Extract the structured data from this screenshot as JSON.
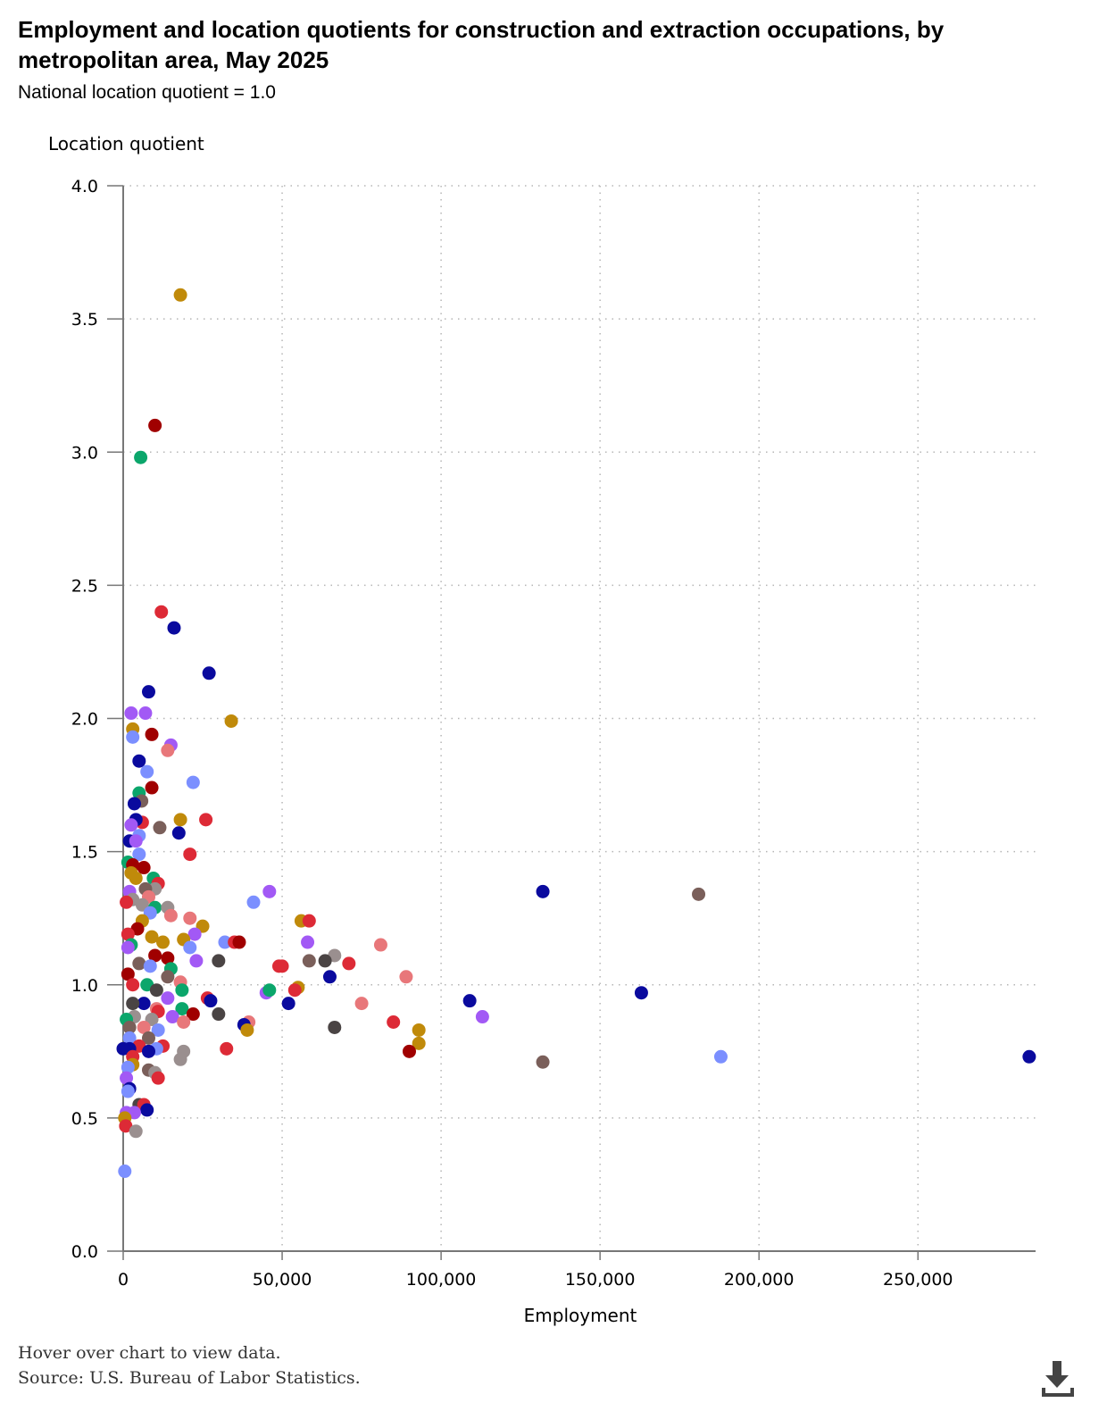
{
  "title": "Employment and location quotients for construction and extraction occupations, by metropolitan area, May 2025",
  "subtitle": "National location quotient = 1.0",
  "footer": {
    "hover_note": "Hover over chart to view data.",
    "source": "Source: U.S. Bureau of Labor Statistics."
  },
  "download_icon": "download-icon",
  "chart_data": {
    "type": "scatter",
    "ylabel": "Location quotient",
    "xlabel": "Employment",
    "xlim": [
      0,
      287000
    ],
    "ylim": [
      0,
      4
    ],
    "x_ticks": [
      0,
      50000,
      100000,
      150000,
      200000,
      250000
    ],
    "x_tick_labels": [
      "0",
      "50,000",
      "100,000",
      "150,000",
      "200,000",
      "250,000"
    ],
    "y_ticks": [
      0,
      0.5,
      1,
      1.5,
      2,
      2.5,
      3,
      3.5,
      4
    ],
    "y_tick_labels": [
      "0.0",
      "0.5",
      "1.0",
      "1.5",
      "2.0",
      "2.5",
      "3.0",
      "3.5",
      "4.0"
    ],
    "grid": "dotted",
    "legend": "none",
    "palette": {
      "navy": "#0a0a9e",
      "blue": "#7b8fff",
      "purple": "#a259f5",
      "green": "#0ba66b",
      "gold": "#c08a0a",
      "darkred": "#a00000",
      "red": "#dd2a36",
      "salmon": "#e8777a",
      "brown": "#7a5f5a",
      "gray": "#9a8f8f",
      "dark": "#4a4444"
    },
    "points": [
      [
        18000,
        3.59,
        "gold"
      ],
      [
        10000,
        3.1,
        "darkred"
      ],
      [
        5500,
        2.98,
        "green"
      ],
      [
        12000,
        2.4,
        "red"
      ],
      [
        16000,
        2.34,
        "navy"
      ],
      [
        27000,
        2.17,
        "navy"
      ],
      [
        8000,
        2.1,
        "navy"
      ],
      [
        34000,
        1.99,
        "gold"
      ],
      [
        2500,
        2.02,
        "purple"
      ],
      [
        7000,
        2.02,
        "purple"
      ],
      [
        3000,
        1.96,
        "gold"
      ],
      [
        9000,
        1.94,
        "darkred"
      ],
      [
        3000,
        1.93,
        "blue"
      ],
      [
        15000,
        1.9,
        "purple"
      ],
      [
        14000,
        1.88,
        "salmon"
      ],
      [
        5000,
        1.84,
        "navy"
      ],
      [
        7500,
        1.8,
        "blue"
      ],
      [
        22000,
        1.76,
        "blue"
      ],
      [
        9000,
        1.74,
        "darkred"
      ],
      [
        5000,
        1.72,
        "green"
      ],
      [
        5800,
        1.69,
        "brown"
      ],
      [
        3500,
        1.68,
        "navy"
      ],
      [
        26000,
        1.62,
        "red"
      ],
      [
        18000,
        1.62,
        "gold"
      ],
      [
        6000,
        1.61,
        "red"
      ],
      [
        4000,
        1.62,
        "navy"
      ],
      [
        2500,
        1.6,
        "purple"
      ],
      [
        11500,
        1.59,
        "brown"
      ],
      [
        17500,
        1.57,
        "navy"
      ],
      [
        5000,
        1.56,
        "blue"
      ],
      [
        2000,
        1.54,
        "navy"
      ],
      [
        4000,
        1.54,
        "purple"
      ],
      [
        21000,
        1.49,
        "red"
      ],
      [
        5000,
        1.49,
        "blue"
      ],
      [
        1500,
        1.46,
        "green"
      ],
      [
        3000,
        1.45,
        "darkred"
      ],
      [
        6500,
        1.44,
        "darkred"
      ],
      [
        2500,
        1.42,
        "gold"
      ],
      [
        4000,
        1.4,
        "gold"
      ],
      [
        9500,
        1.4,
        "green"
      ],
      [
        11000,
        1.38,
        "red"
      ],
      [
        132000,
        1.35,
        "navy"
      ],
      [
        181000,
        1.34,
        "brown"
      ],
      [
        46000,
        1.35,
        "purple"
      ],
      [
        10000,
        1.36,
        "gray"
      ],
      [
        7000,
        1.36,
        "brown"
      ],
      [
        2000,
        1.35,
        "purple"
      ],
      [
        8000,
        1.33,
        "salmon"
      ],
      [
        3000,
        1.32,
        "gray"
      ],
      [
        41000,
        1.31,
        "blue"
      ],
      [
        1000,
        1.31,
        "red"
      ],
      [
        6000,
        1.3,
        "gray"
      ],
      [
        10000,
        1.29,
        "green"
      ],
      [
        14000,
        1.29,
        "gray"
      ],
      [
        8500,
        1.27,
        "blue"
      ],
      [
        15000,
        1.26,
        "salmon"
      ],
      [
        21000,
        1.25,
        "salmon"
      ],
      [
        56000,
        1.24,
        "gold"
      ],
      [
        58500,
        1.24,
        "red"
      ],
      [
        6000,
        1.24,
        "gold"
      ],
      [
        25000,
        1.22,
        "gold"
      ],
      [
        4500,
        1.21,
        "darkred"
      ],
      [
        22500,
        1.19,
        "purple"
      ],
      [
        1500,
        1.19,
        "red"
      ],
      [
        9000,
        1.18,
        "gold"
      ],
      [
        19000,
        1.17,
        "gold"
      ],
      [
        32000,
        1.16,
        "blue"
      ],
      [
        35000,
        1.16,
        "red"
      ],
      [
        36500,
        1.16,
        "darkred"
      ],
      [
        58000,
        1.16,
        "purple"
      ],
      [
        12500,
        1.16,
        "gold"
      ],
      [
        2500,
        1.15,
        "green"
      ],
      [
        81000,
        1.15,
        "salmon"
      ],
      [
        21000,
        1.14,
        "blue"
      ],
      [
        1500,
        1.14,
        "purple"
      ],
      [
        66500,
        1.11,
        "gray"
      ],
      [
        10000,
        1.11,
        "darkred"
      ],
      [
        14000,
        1.1,
        "darkred"
      ],
      [
        23000,
        1.09,
        "purple"
      ],
      [
        30000,
        1.09,
        "dark"
      ],
      [
        58500,
        1.09,
        "brown"
      ],
      [
        63500,
        1.09,
        "dark"
      ],
      [
        71000,
        1.08,
        "red"
      ],
      [
        5000,
        1.08,
        "brown"
      ],
      [
        49000,
        1.07,
        "red"
      ],
      [
        50000,
        1.07,
        "red"
      ],
      [
        8500,
        1.07,
        "blue"
      ],
      [
        15000,
        1.06,
        "green"
      ],
      [
        1500,
        1.04,
        "darkred"
      ],
      [
        65000,
        1.03,
        "navy"
      ],
      [
        89000,
        1.03,
        "salmon"
      ],
      [
        14000,
        1.03,
        "brown"
      ],
      [
        18000,
        1.01,
        "salmon"
      ],
      [
        7500,
        1.0,
        "green"
      ],
      [
        3000,
        1.0,
        "red"
      ],
      [
        55000,
        0.99,
        "gold"
      ],
      [
        10500,
        0.98,
        "dark"
      ],
      [
        18500,
        0.98,
        "green"
      ],
      [
        45000,
        0.97,
        "purple"
      ],
      [
        46000,
        0.98,
        "green"
      ],
      [
        54000,
        0.98,
        "red"
      ],
      [
        163000,
        0.97,
        "navy"
      ],
      [
        14000,
        0.95,
        "purple"
      ],
      [
        26500,
        0.95,
        "red"
      ],
      [
        27500,
        0.94,
        "navy"
      ],
      [
        109000,
        0.94,
        "navy"
      ],
      [
        75000,
        0.93,
        "salmon"
      ],
      [
        52000,
        0.93,
        "navy"
      ],
      [
        6500,
        0.93,
        "navy"
      ],
      [
        3000,
        0.93,
        "dark"
      ],
      [
        10500,
        0.91,
        "salmon"
      ],
      [
        18500,
        0.91,
        "green"
      ],
      [
        11000,
        0.9,
        "red"
      ],
      [
        22000,
        0.89,
        "darkred"
      ],
      [
        30000,
        0.89,
        "dark"
      ],
      [
        113000,
        0.88,
        "purple"
      ],
      [
        15500,
        0.88,
        "purple"
      ],
      [
        3500,
        0.88,
        "gray"
      ],
      [
        9000,
        0.87,
        "gray"
      ],
      [
        1000,
        0.87,
        "green"
      ],
      [
        39500,
        0.86,
        "salmon"
      ],
      [
        85000,
        0.86,
        "red"
      ],
      [
        19000,
        0.86,
        "salmon"
      ],
      [
        66500,
        0.84,
        "dark"
      ],
      [
        38000,
        0.85,
        "navy"
      ],
      [
        2000,
        0.84,
        "brown"
      ],
      [
        6500,
        0.84,
        "salmon"
      ],
      [
        93000,
        0.83,
        "gold"
      ],
      [
        39000,
        0.83,
        "gold"
      ],
      [
        11000,
        0.83,
        "blue"
      ],
      [
        8000,
        0.8,
        "brown"
      ],
      [
        2000,
        0.8,
        "blue"
      ],
      [
        93000,
        0.78,
        "gold"
      ],
      [
        12500,
        0.77,
        "red"
      ],
      [
        5000,
        0.77,
        "red"
      ],
      [
        32500,
        0.76,
        "red"
      ],
      [
        2000,
        0.76,
        "navy"
      ],
      [
        0,
        0.76,
        "navy"
      ],
      [
        10500,
        0.76,
        "blue"
      ],
      [
        90000,
        0.75,
        "darkred"
      ],
      [
        19000,
        0.75,
        "gray"
      ],
      [
        8000,
        0.75,
        "navy"
      ],
      [
        3000,
        0.73,
        "red"
      ],
      [
        188000,
        0.73,
        "blue"
      ],
      [
        285000,
        0.73,
        "navy"
      ],
      [
        18000,
        0.72,
        "gray"
      ],
      [
        132000,
        0.71,
        "brown"
      ],
      [
        3000,
        0.7,
        "gold"
      ],
      [
        1500,
        0.69,
        "blue"
      ],
      [
        8000,
        0.68,
        "brown"
      ],
      [
        10000,
        0.67,
        "gray"
      ],
      [
        11000,
        0.65,
        "red"
      ],
      [
        1000,
        0.65,
        "purple"
      ],
      [
        2000,
        0.61,
        "navy"
      ],
      [
        1500,
        0.6,
        "blue"
      ],
      [
        5000,
        0.55,
        "dark"
      ],
      [
        6500,
        0.55,
        "red"
      ],
      [
        7500,
        0.53,
        "navy"
      ],
      [
        3500,
        0.52,
        "purple"
      ],
      [
        1000,
        0.52,
        "purple"
      ],
      [
        500,
        0.5,
        "gold"
      ],
      [
        800,
        0.47,
        "red"
      ],
      [
        4000,
        0.45,
        "gray"
      ],
      [
        500,
        0.3,
        "blue"
      ]
    ]
  }
}
